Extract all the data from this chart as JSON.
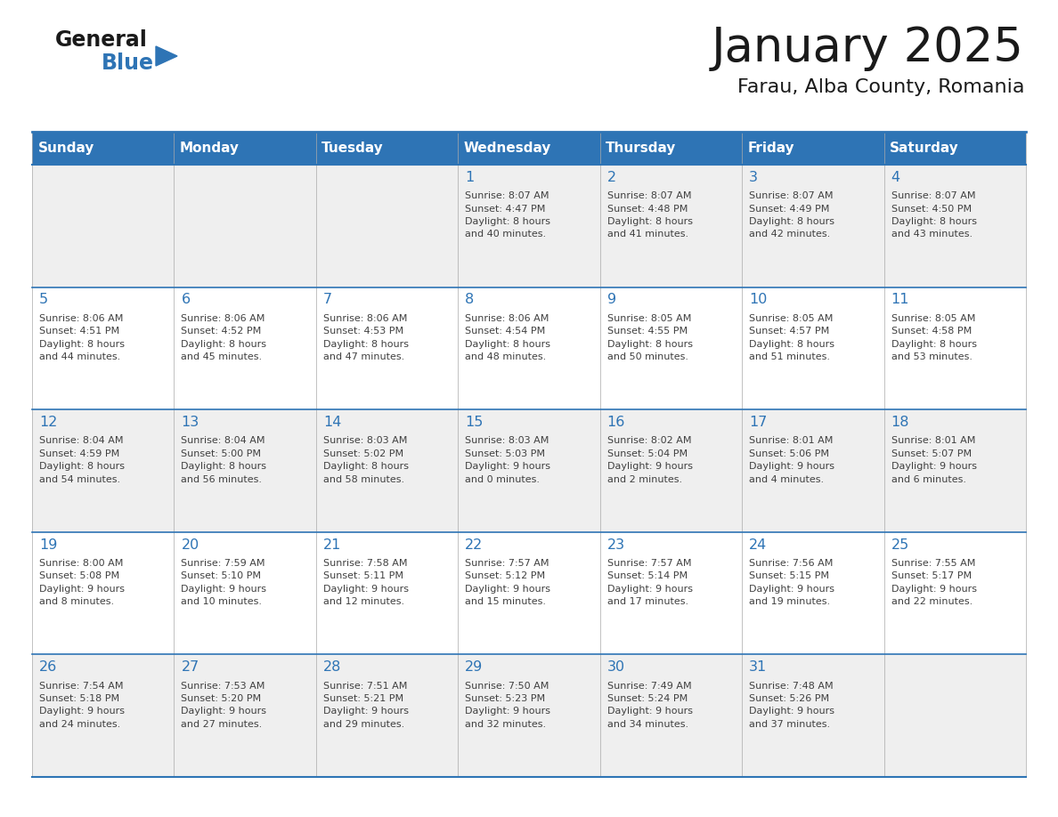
{
  "title": "January 2025",
  "subtitle": "Farau, Alba County, Romania",
  "header_bg": "#2E74B5",
  "header_text_color": "#FFFFFF",
  "day_headers": [
    "Sunday",
    "Monday",
    "Tuesday",
    "Wednesday",
    "Thursday",
    "Friday",
    "Saturday"
  ],
  "cell_bg_light": "#EFEFEF",
  "cell_bg_white": "#FFFFFF",
  "cell_border_color": "#2E74B5",
  "text_color": "#404040",
  "day_number_color": "#2E74B5",
  "logo_general_color": "#1a1a1a",
  "logo_blue_color": "#2E74B5",
  "title_color": "#1a1a1a",
  "calendar_data": [
    [
      {
        "day": null,
        "info": null
      },
      {
        "day": null,
        "info": null
      },
      {
        "day": null,
        "info": null
      },
      {
        "day": 1,
        "info": "Sunrise: 8:07 AM\nSunset: 4:47 PM\nDaylight: 8 hours\nand 40 minutes."
      },
      {
        "day": 2,
        "info": "Sunrise: 8:07 AM\nSunset: 4:48 PM\nDaylight: 8 hours\nand 41 minutes."
      },
      {
        "day": 3,
        "info": "Sunrise: 8:07 AM\nSunset: 4:49 PM\nDaylight: 8 hours\nand 42 minutes."
      },
      {
        "day": 4,
        "info": "Sunrise: 8:07 AM\nSunset: 4:50 PM\nDaylight: 8 hours\nand 43 minutes."
      }
    ],
    [
      {
        "day": 5,
        "info": "Sunrise: 8:06 AM\nSunset: 4:51 PM\nDaylight: 8 hours\nand 44 minutes."
      },
      {
        "day": 6,
        "info": "Sunrise: 8:06 AM\nSunset: 4:52 PM\nDaylight: 8 hours\nand 45 minutes."
      },
      {
        "day": 7,
        "info": "Sunrise: 8:06 AM\nSunset: 4:53 PM\nDaylight: 8 hours\nand 47 minutes."
      },
      {
        "day": 8,
        "info": "Sunrise: 8:06 AM\nSunset: 4:54 PM\nDaylight: 8 hours\nand 48 minutes."
      },
      {
        "day": 9,
        "info": "Sunrise: 8:05 AM\nSunset: 4:55 PM\nDaylight: 8 hours\nand 50 minutes."
      },
      {
        "day": 10,
        "info": "Sunrise: 8:05 AM\nSunset: 4:57 PM\nDaylight: 8 hours\nand 51 minutes."
      },
      {
        "day": 11,
        "info": "Sunrise: 8:05 AM\nSunset: 4:58 PM\nDaylight: 8 hours\nand 53 minutes."
      }
    ],
    [
      {
        "day": 12,
        "info": "Sunrise: 8:04 AM\nSunset: 4:59 PM\nDaylight: 8 hours\nand 54 minutes."
      },
      {
        "day": 13,
        "info": "Sunrise: 8:04 AM\nSunset: 5:00 PM\nDaylight: 8 hours\nand 56 minutes."
      },
      {
        "day": 14,
        "info": "Sunrise: 8:03 AM\nSunset: 5:02 PM\nDaylight: 8 hours\nand 58 minutes."
      },
      {
        "day": 15,
        "info": "Sunrise: 8:03 AM\nSunset: 5:03 PM\nDaylight: 9 hours\nand 0 minutes."
      },
      {
        "day": 16,
        "info": "Sunrise: 8:02 AM\nSunset: 5:04 PM\nDaylight: 9 hours\nand 2 minutes."
      },
      {
        "day": 17,
        "info": "Sunrise: 8:01 AM\nSunset: 5:06 PM\nDaylight: 9 hours\nand 4 minutes."
      },
      {
        "day": 18,
        "info": "Sunrise: 8:01 AM\nSunset: 5:07 PM\nDaylight: 9 hours\nand 6 minutes."
      }
    ],
    [
      {
        "day": 19,
        "info": "Sunrise: 8:00 AM\nSunset: 5:08 PM\nDaylight: 9 hours\nand 8 minutes."
      },
      {
        "day": 20,
        "info": "Sunrise: 7:59 AM\nSunset: 5:10 PM\nDaylight: 9 hours\nand 10 minutes."
      },
      {
        "day": 21,
        "info": "Sunrise: 7:58 AM\nSunset: 5:11 PM\nDaylight: 9 hours\nand 12 minutes."
      },
      {
        "day": 22,
        "info": "Sunrise: 7:57 AM\nSunset: 5:12 PM\nDaylight: 9 hours\nand 15 minutes."
      },
      {
        "day": 23,
        "info": "Sunrise: 7:57 AM\nSunset: 5:14 PM\nDaylight: 9 hours\nand 17 minutes."
      },
      {
        "day": 24,
        "info": "Sunrise: 7:56 AM\nSunset: 5:15 PM\nDaylight: 9 hours\nand 19 minutes."
      },
      {
        "day": 25,
        "info": "Sunrise: 7:55 AM\nSunset: 5:17 PM\nDaylight: 9 hours\nand 22 minutes."
      }
    ],
    [
      {
        "day": 26,
        "info": "Sunrise: 7:54 AM\nSunset: 5:18 PM\nDaylight: 9 hours\nand 24 minutes."
      },
      {
        "day": 27,
        "info": "Sunrise: 7:53 AM\nSunset: 5:20 PM\nDaylight: 9 hours\nand 27 minutes."
      },
      {
        "day": 28,
        "info": "Sunrise: 7:51 AM\nSunset: 5:21 PM\nDaylight: 9 hours\nand 29 minutes."
      },
      {
        "day": 29,
        "info": "Sunrise: 7:50 AM\nSunset: 5:23 PM\nDaylight: 9 hours\nand 32 minutes."
      },
      {
        "day": 30,
        "info": "Sunrise: 7:49 AM\nSunset: 5:24 PM\nDaylight: 9 hours\nand 34 minutes."
      },
      {
        "day": 31,
        "info": "Sunrise: 7:48 AM\nSunset: 5:26 PM\nDaylight: 9 hours\nand 37 minutes."
      },
      {
        "day": null,
        "info": null
      }
    ]
  ]
}
